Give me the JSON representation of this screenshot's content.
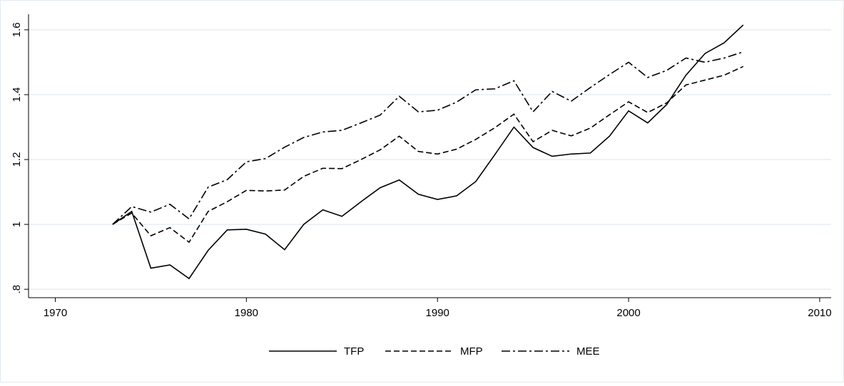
{
  "chart_data": {
    "type": "line",
    "x": [
      1973,
      1974,
      1975,
      1976,
      1977,
      1978,
      1979,
      1980,
      1981,
      1982,
      1983,
      1984,
      1985,
      1986,
      1987,
      1988,
      1989,
      1990,
      1991,
      1992,
      1993,
      1994,
      1995,
      1996,
      1997,
      1998,
      1999,
      2000,
      2001,
      2002,
      2003,
      2004,
      2005,
      2006
    ],
    "series": [
      {
        "name": "TFP",
        "color": "#000000",
        "values": [
          1.0,
          1.04,
          0.865,
          0.875,
          0.833,
          0.92,
          0.983,
          0.985,
          0.97,
          0.922,
          1.0,
          1.045,
          1.025,
          1.07,
          1.113,
          1.137,
          1.093,
          1.077,
          1.088,
          1.132,
          1.215,
          1.3,
          1.237,
          1.21,
          1.217,
          1.22,
          1.272,
          1.35,
          1.313,
          1.37,
          1.46,
          1.527,
          1.56,
          1.615
        ]
      },
      {
        "name": "MFP",
        "color": "#000000",
        "values": [
          1.0,
          1.035,
          0.965,
          0.99,
          0.945,
          1.04,
          1.07,
          1.105,
          1.103,
          1.106,
          1.148,
          1.173,
          1.172,
          1.2,
          1.23,
          1.272,
          1.225,
          1.217,
          1.232,
          1.262,
          1.298,
          1.34,
          1.255,
          1.29,
          1.273,
          1.297,
          1.338,
          1.378,
          1.345,
          1.375,
          1.43,
          1.445,
          1.46,
          1.487
        ]
      },
      {
        "name": "MEE",
        "color": "#000000",
        "values": [
          1.0,
          1.055,
          1.038,
          1.062,
          1.017,
          1.115,
          1.138,
          1.193,
          1.203,
          1.238,
          1.268,
          1.285,
          1.29,
          1.313,
          1.337,
          1.395,
          1.347,
          1.352,
          1.377,
          1.415,
          1.418,
          1.443,
          1.347,
          1.41,
          1.38,
          1.422,
          1.462,
          1.5,
          1.453,
          1.475,
          1.513,
          1.5,
          1.513,
          1.532
        ]
      }
    ],
    "xlim": [
      1968.6,
      2010.6
    ],
    "xticks": [
      1970,
      1980,
      1990,
      2000,
      2010
    ],
    "ylim": [
      0.774,
      1.648
    ],
    "yticks": [
      {
        "value": 0.8,
        "label": ".8"
      },
      1,
      1.2,
      1.4,
      1.6
    ],
    "grid": true
  }
}
